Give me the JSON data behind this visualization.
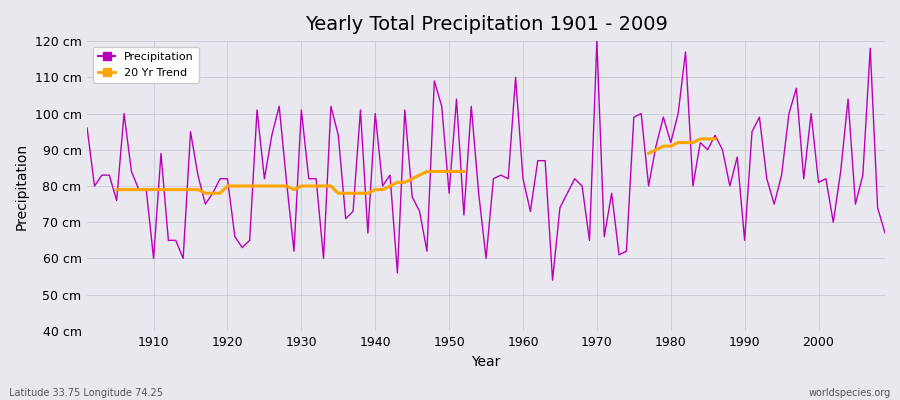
{
  "title": "Yearly Total Precipitation 1901 - 2009",
  "xlabel": "Year",
  "ylabel": "Precipitation",
  "title_fontsize": 14,
  "axis_label_fontsize": 10,
  "background_color": "#e8e8ee",
  "plot_bg_color": "#e8e8ee",
  "precipitation_color": "#bb00bb",
  "trend_color": "#ffa500",
  "ylim": [
    40,
    120
  ],
  "xlim": [
    1901,
    2009
  ],
  "ytick_labels": [
    "40 cm",
    "50 cm",
    "60 cm",
    "70 cm",
    "80 cm",
    "90 cm",
    "100 cm",
    "110 cm",
    "120 cm"
  ],
  "ytick_values": [
    40,
    50,
    60,
    70,
    80,
    90,
    100,
    110,
    120
  ],
  "xtick_values": [
    1910,
    1920,
    1930,
    1940,
    1950,
    1960,
    1970,
    1980,
    1990,
    2000
  ],
  "footer_left": "Latitude 33.75 Longitude 74.25",
  "footer_right": "worldspecies.org",
  "years": [
    1901,
    1902,
    1903,
    1904,
    1905,
    1906,
    1907,
    1908,
    1909,
    1910,
    1911,
    1912,
    1913,
    1914,
    1915,
    1916,
    1917,
    1918,
    1919,
    1920,
    1921,
    1922,
    1923,
    1924,
    1925,
    1926,
    1927,
    1928,
    1929,
    1930,
    1931,
    1932,
    1933,
    1934,
    1935,
    1936,
    1937,
    1938,
    1939,
    1940,
    1941,
    1942,
    1943,
    1944,
    1945,
    1946,
    1947,
    1948,
    1949,
    1950,
    1951,
    1952,
    1953,
    1954,
    1955,
    1956,
    1957,
    1958,
    1959,
    1960,
    1961,
    1962,
    1963,
    1964,
    1965,
    1966,
    1967,
    1968,
    1969,
    1970,
    1971,
    1972,
    1973,
    1974,
    1975,
    1976,
    1977,
    1978,
    1979,
    1980,
    1981,
    1982,
    1983,
    1984,
    1985,
    1986,
    1987,
    1988,
    1989,
    1990,
    1991,
    1992,
    1993,
    1994,
    1995,
    1996,
    1997,
    1998,
    1999,
    2000,
    2001,
    2002,
    2003,
    2004,
    2005,
    2006,
    2007,
    2008,
    2009
  ],
  "precipitation": [
    96,
    80,
    83,
    83,
    76,
    100,
    84,
    79,
    79,
    60,
    89,
    65,
    65,
    60,
    95,
    83,
    75,
    78,
    82,
    82,
    66,
    63,
    65,
    101,
    82,
    94,
    102,
    81,
    62,
    101,
    82,
    82,
    60,
    102,
    94,
    71,
    73,
    101,
    67,
    100,
    80,
    83,
    56,
    101,
    77,
    73,
    62,
    109,
    102,
    78,
    104,
    72,
    102,
    78,
    60,
    82,
    83,
    82,
    110,
    82,
    73,
    87,
    87,
    54,
    74,
    78,
    82,
    80,
    65,
    120,
    66,
    78,
    61,
    62,
    99,
    100,
    80,
    91,
    99,
    92,
    100,
    117,
    80,
    92,
    90,
    94,
    90,
    80,
    88,
    65,
    95,
    99,
    82,
    75,
    83,
    100,
    107,
    82,
    100,
    81,
    82,
    70,
    84,
    104,
    75,
    83,
    118,
    74,
    67
  ],
  "trend_segments": [
    {
      "years": [
        1905,
        1906,
        1907,
        1908,
        1909,
        1910,
        1911,
        1912,
        1913,
        1914,
        1915,
        1916,
        1917,
        1918,
        1919,
        1920,
        1921,
        1922,
        1923,
        1924,
        1925,
        1926,
        1927,
        1928,
        1929,
        1930,
        1931,
        1932,
        1933,
        1934,
        1935,
        1936,
        1937,
        1938,
        1939,
        1940,
        1941,
        1942,
        1943,
        1944,
        1945,
        1946,
        1947,
        1948,
        1949,
        1950,
        1951,
        1952
      ],
      "values": [
        79,
        79,
        79,
        79,
        79,
        79,
        79,
        79,
        79,
        79,
        79,
        79,
        78,
        78,
        78,
        80,
        80,
        80,
        80,
        80,
        80,
        80,
        80,
        80,
        79,
        80,
        80,
        80,
        80,
        80,
        78,
        78,
        78,
        78,
        78,
        79,
        79,
        80,
        81,
        81,
        82,
        83,
        84,
        84,
        84,
        84,
        84,
        84
      ]
    },
    {
      "years": [
        1977,
        1978,
        1979,
        1980,
        1981,
        1982,
        1983,
        1984,
        1985,
        1986
      ],
      "values": [
        89,
        90,
        91,
        91,
        92,
        92,
        92,
        93,
        93,
        93
      ]
    }
  ]
}
